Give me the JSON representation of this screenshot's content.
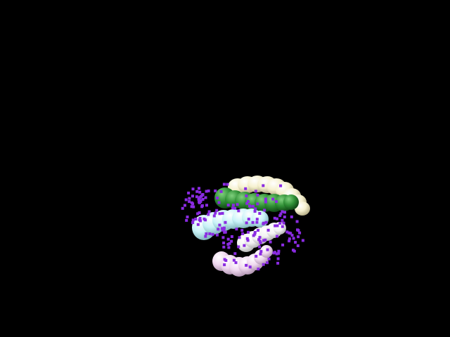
{
  "scene": {
    "background_color": "#000000",
    "objects": [
      {
        "name": "cream-bead-chain",
        "color": "#f6f1cf"
      },
      {
        "name": "green-bead-chain",
        "color": "#2f8f35"
      },
      {
        "name": "light-cyan-bead-chain",
        "color": "#c9f3f7"
      },
      {
        "name": "white-bead-chain",
        "color": "#f7f7f7"
      },
      {
        "name": "lavender-bead-chain",
        "color": "#efd8ef"
      },
      {
        "name": "purple-particle-cloud",
        "color": "#8a2be2"
      }
    ]
  }
}
